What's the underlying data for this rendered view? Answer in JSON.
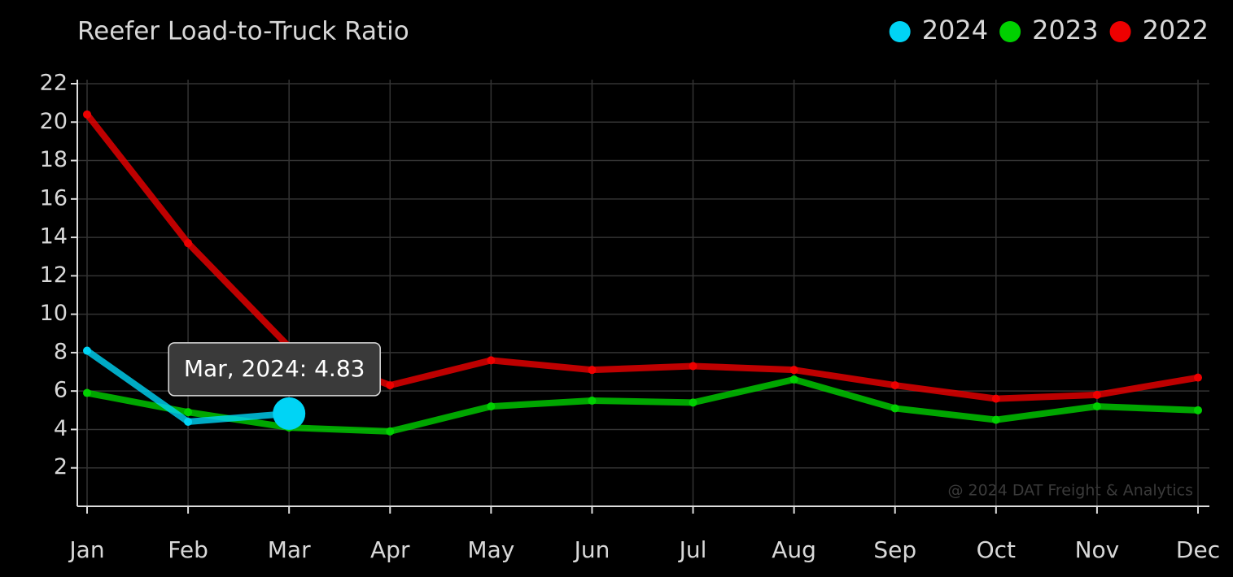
{
  "chart_data": {
    "type": "line",
    "title": "Reefer Load-to-Truck Ratio",
    "categories": [
      "Jan",
      "Feb",
      "Mar",
      "Apr",
      "May",
      "Jun",
      "Jul",
      "Aug",
      "Sep",
      "Oct",
      "Nov",
      "Dec"
    ],
    "series": [
      {
        "name": "2024",
        "color": "#00d4f5",
        "values": [
          8.1,
          4.4,
          4.83,
          null,
          null,
          null,
          null,
          null,
          null,
          null,
          null,
          null
        ]
      },
      {
        "name": "2023",
        "color": "#00d000",
        "values": [
          5.9,
          4.9,
          4.1,
          3.9,
          5.2,
          5.5,
          5.4,
          6.6,
          5.1,
          4.5,
          5.2,
          5.0
        ]
      },
      {
        "name": "2022",
        "color": "#ee0000",
        "values": [
          20.4,
          13.7,
          8.3,
          6.3,
          7.6,
          7.1,
          7.3,
          7.1,
          6.3,
          5.6,
          5.8,
          6.7
        ]
      }
    ],
    "ylim": [
      0,
      22
    ],
    "yticks": [
      2,
      4,
      6,
      8,
      10,
      12,
      14,
      16,
      18,
      20,
      22
    ],
    "grid": true,
    "legend": "top-right",
    "tooltip": "Mar, 2024: 4.83",
    "watermark": "@ 2024 DAT Freight & Analytics"
  }
}
